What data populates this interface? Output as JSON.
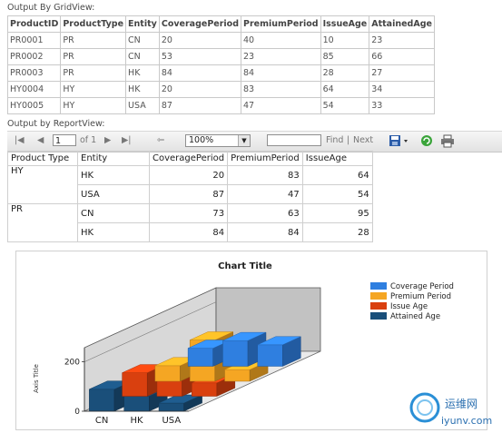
{
  "grid_view": {
    "label": "Output By GridView:",
    "columns": [
      "ProductID",
      "ProductType",
      "Entity",
      "CoveragePeriod",
      "PremiumPeriod",
      "IssueAge",
      "AttainedAge"
    ],
    "rows": [
      [
        "PR0001",
        "PR",
        "CN",
        "20",
        "40",
        "10",
        "23"
      ],
      [
        "PR0002",
        "PR",
        "CN",
        "53",
        "23",
        "85",
        "66"
      ],
      [
        "PR0003",
        "PR",
        "HK",
        "84",
        "84",
        "28",
        "27"
      ],
      [
        "HY0004",
        "HY",
        "HK",
        "20",
        "83",
        "64",
        "34"
      ],
      [
        "HY0005",
        "HY",
        "USA",
        "87",
        "47",
        "54",
        "33"
      ]
    ]
  },
  "report_view": {
    "label": "Output by ReportView:",
    "toolbar": {
      "page_value": "1",
      "page_of": "of 1",
      "zoom": "100%",
      "find_label": "Find",
      "separator": "|",
      "next_label": "Next"
    },
    "columns": [
      "Product Type",
      "Entity",
      "CoveragePeriod",
      "PremiumPeriod",
      "IssueAge"
    ],
    "groups": [
      {
        "type": "HY",
        "rows": [
          {
            "entity": "HK",
            "coverage": "20",
            "premium": "83",
            "issue": "64"
          },
          {
            "entity": "USA",
            "coverage": "87",
            "premium": "47",
            "issue": "54"
          }
        ]
      },
      {
        "type": "PR",
        "rows": [
          {
            "entity": "CN",
            "coverage": "73",
            "premium": "63",
            "issue": "95"
          },
          {
            "entity": "HK",
            "coverage": "84",
            "premium": "84",
            "issue": "28"
          }
        ]
      }
    ]
  },
  "chart_data": {
    "type": "bar",
    "title": "Chart Title",
    "ylabel": "Axis Title",
    "xlabel": "",
    "categories": [
      "CN",
      "HK",
      "USA"
    ],
    "yticks": [
      0,
      200
    ],
    "ylim": [
      0,
      250
    ],
    "legend_position": "right",
    "series": [
      {
        "name": "Coverage Period",
        "color": "#2f7fe0",
        "values": [
          73,
          104,
          87
        ]
      },
      {
        "name": "Premium Period",
        "color": "#f5a623",
        "values": [
          63,
          167,
          47
        ]
      },
      {
        "name": "Issue Age",
        "color": "#d9400f",
        "values": [
          95,
          92,
          54
        ]
      },
      {
        "name": "Attained Age",
        "color": "#1a4f7a",
        "values": [
          89,
          61,
          33
        ]
      }
    ]
  },
  "watermark": {
    "name": "运维网",
    "url": "iyunv.com",
    "colors": {
      "ring": "#2a8fd6",
      "text": "#2a6fb0"
    }
  }
}
